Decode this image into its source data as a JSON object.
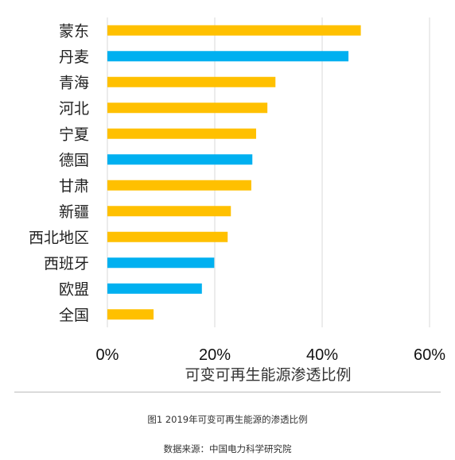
{
  "chart_data": {
    "type": "bar",
    "orientation": "horizontal",
    "categories": [
      "蒙东",
      "丹麦",
      "青海",
      "河北",
      "宁夏",
      "德国",
      "甘肃",
      "新疆",
      "西北地区",
      "西班牙",
      "欧盟",
      "全国"
    ],
    "values": [
      47.2,
      44.9,
      31.3,
      29.8,
      27.7,
      27.0,
      26.8,
      23.0,
      22.4,
      19.9,
      17.6,
      8.6
    ],
    "bar_colors": [
      "#FFC000",
      "#00B0F0",
      "#FFC000",
      "#FFC000",
      "#FFC000",
      "#00B0F0",
      "#FFC000",
      "#FFC000",
      "#FFC000",
      "#00B0F0",
      "#00B0F0",
      "#FFC000"
    ],
    "xlim": [
      0,
      60
    ],
    "xticks": [
      0,
      20,
      40,
      60
    ],
    "xtick_labels": [
      "0%",
      "20%",
      "40%",
      "60%"
    ],
    "xlabel": "可变可再生能源渗透比例",
    "gridlines": "vertical",
    "grid_color": "#d9d9d9",
    "legend": "none"
  },
  "caption": "图1 2019年可变可再生能源的渗透比例",
  "source": "数据来源：中国电力科学研究院"
}
